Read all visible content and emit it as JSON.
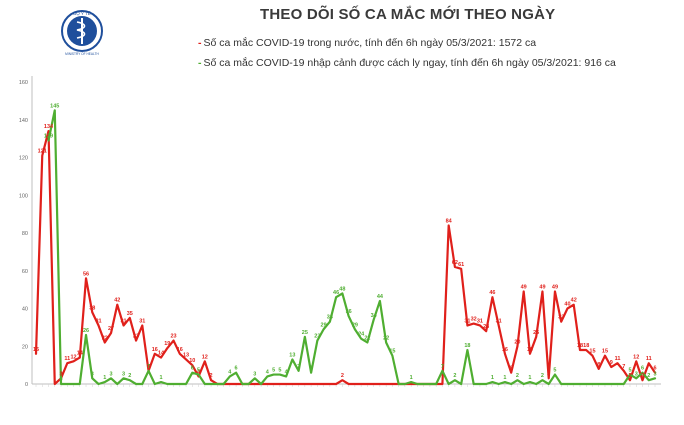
{
  "header": {
    "title": "THEO DÕI SỐ CA MẮC MỚI THEO NGÀY",
    "logo_top_text": "BỘ Y TẾ",
    "logo_bottom_text": "MINISTRY OF HEALTH"
  },
  "chart_data": {
    "type": "line",
    "title": "THEO DÕI SỐ CA MẮC MỚI THEO NGÀY",
    "xlabel": "",
    "ylabel": "",
    "ylim": [
      0,
      160
    ],
    "yticks": [
      0,
      20,
      40,
      60,
      80,
      100,
      120,
      140,
      160
    ],
    "grid": false,
    "legend_position": "top",
    "series": [
      {
        "name": "Số ca mắc COVID-19 trong nước, tính đến 6h ngày 05/3/2021: 1572 ca",
        "color": "#e0201b",
        "values": [
          16,
          121,
          134,
          0,
          3,
          11,
          12,
          14,
          56,
          38,
          31,
          22,
          27,
          42,
          31,
          35,
          23,
          31,
          7,
          16,
          14,
          19,
          23,
          16,
          13,
          10,
          4,
          12,
          2,
          0,
          0,
          0,
          0,
          0,
          0,
          0,
          0,
          0,
          0,
          0,
          0,
          0,
          0,
          0,
          0,
          0,
          0,
          0,
          0,
          2,
          0,
          0,
          0,
          0,
          0,
          0,
          0,
          0,
          0,
          0,
          0,
          0,
          0,
          0,
          0,
          0,
          84,
          62,
          61,
          31,
          32,
          31,
          28,
          46,
          31,
          16,
          6,
          20,
          49,
          16,
          25,
          49,
          3,
          49,
          33,
          40,
          42,
          18,
          18,
          15,
          8,
          15,
          9,
          11,
          7,
          2,
          12,
          2,
          11,
          6
        ]
      },
      {
        "name": "Số ca mắc COVID-19 nhập cảnh được cách ly ngay, tính đến 6h ngày 05/3/2021: 916 ca",
        "color": "#4fae31",
        "values": [
          null,
          null,
          129,
          145,
          0,
          0,
          0,
          0,
          26,
          3,
          0,
          1,
          3,
          0,
          3,
          2,
          0,
          0,
          7,
          0,
          1,
          0,
          0,
          0,
          0,
          6,
          5,
          0,
          0,
          0,
          0,
          4,
          6,
          0,
          0,
          3,
          0,
          4,
          5,
          5,
          4,
          13,
          7,
          25,
          6,
          23,
          29,
          33,
          46,
          48,
          36,
          29,
          24,
          22,
          34,
          44,
          22,
          15,
          0,
          0,
          1,
          0,
          0,
          0,
          0,
          7,
          0,
          2,
          0,
          18,
          0,
          0,
          0,
          1,
          0,
          1,
          0,
          2,
          0,
          1,
          0,
          2,
          0,
          5,
          0,
          0,
          0,
          0,
          0,
          0,
          0,
          0,
          0,
          0,
          0,
          5,
          3,
          6,
          2,
          3
        ]
      }
    ],
    "labels_red": [
      16,
      121,
      134,
      null,
      3,
      11,
      12,
      14,
      56,
      38,
      31,
      22,
      27,
      42,
      31,
      35,
      23,
      31,
      7,
      16,
      14,
      19,
      23,
      16,
      13,
      10,
      4,
      12,
      2,
      null,
      null,
      null,
      null,
      null,
      null,
      null,
      null,
      null,
      null,
      null,
      null,
      null,
      null,
      null,
      null,
      null,
      null,
      null,
      null,
      2,
      null,
      null,
      null,
      null,
      null,
      null,
      null,
      null,
      null,
      null,
      null,
      null,
      null,
      null,
      null,
      null,
      84,
      62,
      61,
      31,
      32,
      31,
      28,
      46,
      31,
      16,
      6,
      20,
      49,
      16,
      25,
      49,
      3,
      49,
      33,
      40,
      42,
      18,
      18,
      15,
      8,
      15,
      9,
      11,
      7,
      2,
      12,
      2,
      11,
      6
    ],
    "labels_green": [
      null,
      null,
      129,
      145,
      0,
      null,
      null,
      null,
      26,
      3,
      null,
      1,
      3,
      null,
      3,
      2,
      null,
      null,
      7,
      null,
      1,
      null,
      null,
      null,
      null,
      6,
      5,
      null,
      null,
      null,
      null,
      4,
      6,
      null,
      null,
      3,
      null,
      4,
      5,
      5,
      4,
      13,
      7,
      25,
      6,
      23,
      29,
      33,
      46,
      48,
      36,
      29,
      24,
      22,
      34,
      44,
      22,
      15,
      null,
      null,
      1,
      null,
      null,
      null,
      null,
      7,
      null,
      2,
      null,
      18,
      null,
      null,
      null,
      1,
      null,
      1,
      null,
      2,
      null,
      1,
      null,
      2,
      null,
      5,
      null,
      null,
      null,
      null,
      null,
      null,
      null,
      null,
      null,
      null,
      null,
      5,
      3,
      6,
      2,
      3
    ]
  },
  "colors": {
    "red": "#e0201b",
    "green": "#4fae31",
    "axis": "#bfbfbf",
    "logo_blue": "#1f4f9c"
  }
}
